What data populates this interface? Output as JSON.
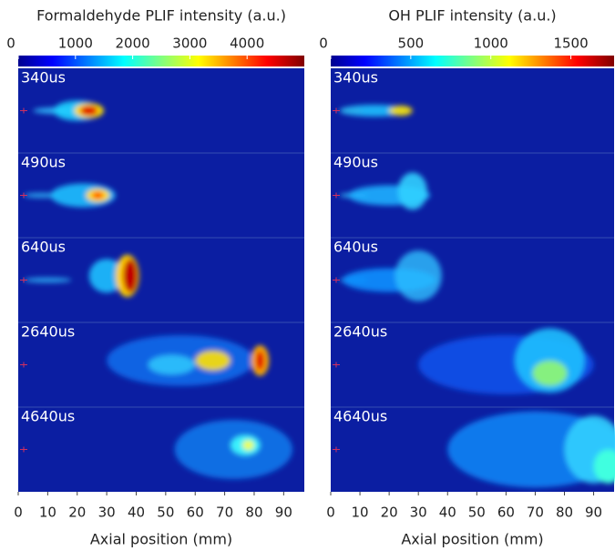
{
  "chart_data": [
    {
      "type": "heatmap",
      "title": "Formaldehyde PLIF intensity (a.u.)",
      "clim": [
        0,
        5000
      ],
      "cticks": [
        0,
        1000,
        2000,
        3000,
        4000
      ],
      "panels": [
        "340us",
        "490us",
        "640us",
        "2640us",
        "4640us"
      ],
      "xlabel": "Axial position (mm)",
      "xlim": [
        0,
        97
      ],
      "xticks": [
        0,
        10,
        20,
        30,
        40,
        50,
        60,
        70,
        80,
        90
      ]
    },
    {
      "type": "heatmap",
      "title": "OH PLIF intensity (a.u.)",
      "clim": [
        0,
        1770
      ],
      "cticks": [
        0,
        500,
        1000,
        1500
      ],
      "panels": [
        "340us",
        "490us",
        "640us",
        "2640us",
        "4640us"
      ],
      "xlabel": "Axial position (mm)",
      "xlim": [
        0,
        97
      ],
      "xticks": [
        0,
        10,
        20,
        30,
        40,
        50,
        60,
        70,
        80,
        90
      ]
    }
  ]
}
